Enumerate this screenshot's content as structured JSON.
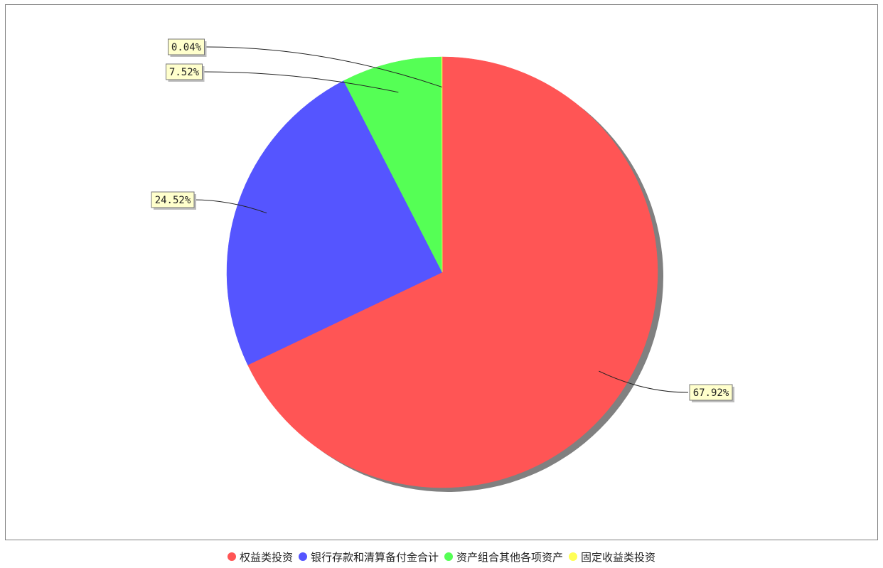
{
  "chart_data": {
    "type": "pie",
    "title": "",
    "slices": [
      {
        "name": "权益类投资",
        "value": 67.92,
        "label": "67.92%",
        "color": "#ff5555"
      },
      {
        "name": "银行存款和清算备付金合计",
        "value": 24.52,
        "label": "24.52%",
        "color": "#5555ff"
      },
      {
        "name": "资产组合其他各项资产",
        "value": 7.52,
        "label": "7.52%",
        "color": "#55ff55"
      },
      {
        "name": "固定收益类投资",
        "value": 0.04,
        "label": "0.04%",
        "color": "#ffff55"
      }
    ],
    "legend_position": "bottom",
    "label_box_color": "#ffffcc",
    "shadow_color": "#808080"
  }
}
